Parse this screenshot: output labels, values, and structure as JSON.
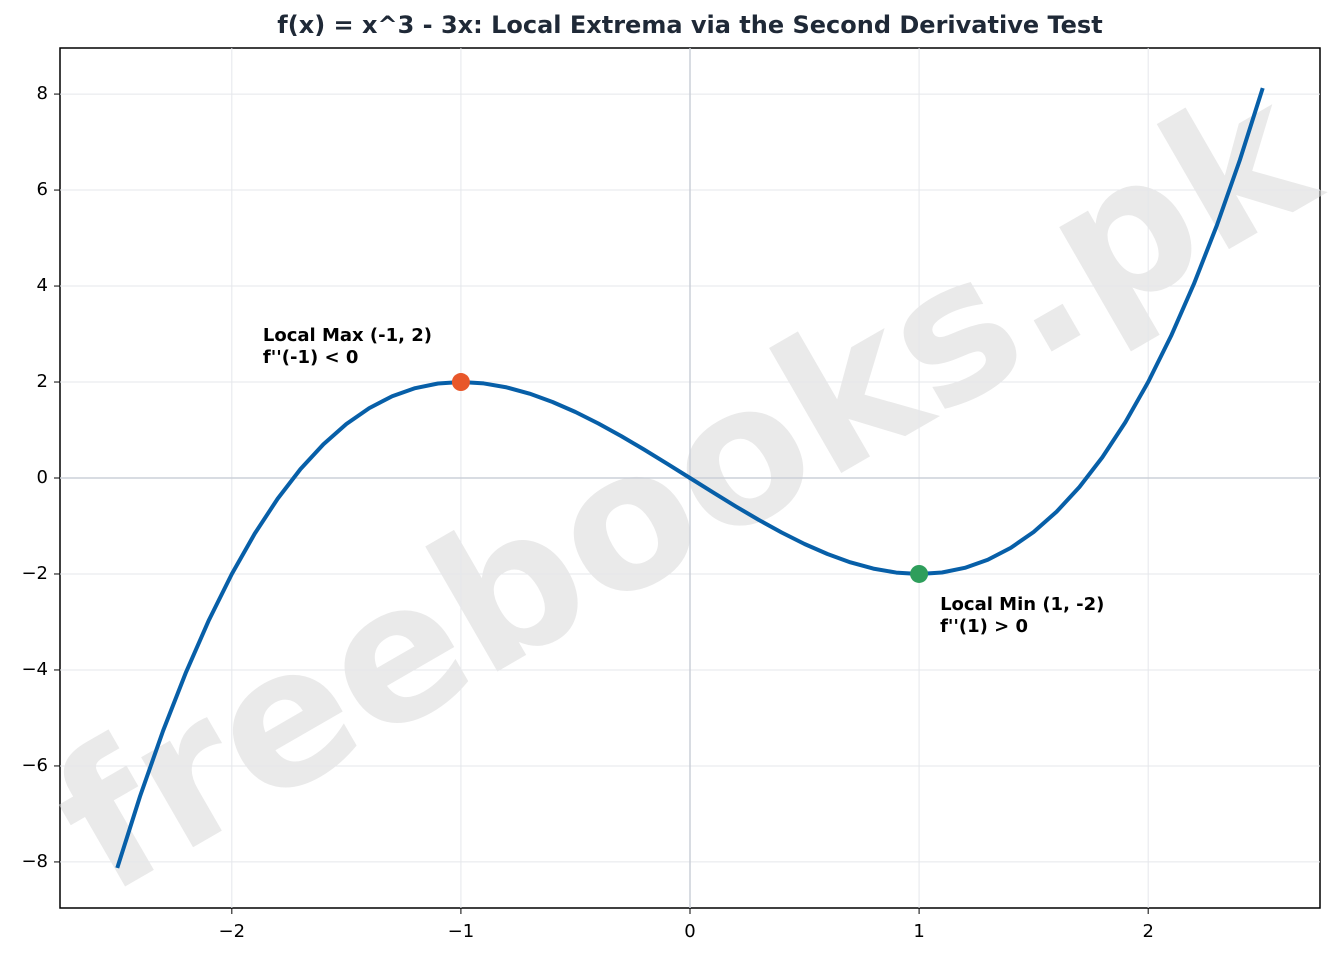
{
  "chart_data": {
    "type": "line",
    "title": "f(x) = x^3 - 3x: Local Extrema via the Second Derivative Test",
    "watermark": "freebooks.pk",
    "x": [
      -2.5,
      -2.4,
      -2.3,
      -2.2,
      -2.1,
      -2.0,
      -1.9,
      -1.8,
      -1.7,
      -1.6,
      -1.5,
      -1.4,
      -1.3,
      -1.2,
      -1.1,
      -1.0,
      -0.9,
      -0.8,
      -0.7,
      -0.6,
      -0.5,
      -0.4,
      -0.3,
      -0.2,
      -0.1,
      0,
      0.1,
      0.2,
      0.3,
      0.4,
      0.5,
      0.6,
      0.7,
      0.8,
      0.9,
      1.0,
      1.1,
      1.2,
      1.3,
      1.4,
      1.5,
      1.6,
      1.7,
      1.8,
      1.9,
      2.0,
      2.1,
      2.2,
      2.3,
      2.4,
      2.5
    ],
    "series": [
      {
        "color": "#075fa8",
        "values": [
          -8.125,
          -6.624,
          -5.267,
          -4.048,
          -2.961,
          -2,
          -1.159,
          -0.432,
          0.187,
          0.704,
          1.125,
          1.456,
          1.703,
          1.872,
          1.969,
          2,
          1.971,
          1.888,
          1.757,
          1.584,
          1.375,
          1.136,
          0.873,
          0.592,
          0.299,
          0,
          -0.299,
          -0.592,
          -0.873,
          -1.136,
          -1.375,
          -1.584,
          -1.757,
          -1.888,
          -1.971,
          -2,
          -1.969,
          -1.872,
          -1.703,
          -1.456,
          -1.125,
          -0.704,
          -0.187,
          0.432,
          1.159,
          2,
          2.961,
          4.048,
          5.267,
          6.624,
          8.125
        ]
      }
    ],
    "points": [
      {
        "label": "Local Max (-1, 2)",
        "note": "f''(-1) < 0",
        "x": -1,
        "y": 2,
        "color": "#e8572a",
        "anchor": "above-left"
      },
      {
        "label": "Local Min (1, -2)",
        "note": "f''(1) > 0",
        "x": 1,
        "y": -2,
        "color": "#2e9e5b",
        "anchor": "below-right"
      }
    ],
    "xlim": [
      -2.75,
      2.75
    ],
    "ylim": [
      -8.96,
      8.96
    ],
    "xticks": [
      {
        "value": -2,
        "label": "−2"
      },
      {
        "value": -1,
        "label": "−1"
      },
      0,
      1,
      2
    ],
    "yticks": [
      {
        "value": -8,
        "label": "−8"
      },
      {
        "value": -6,
        "label": "−6"
      },
      {
        "value": -4,
        "label": "−4"
      },
      {
        "value": -2,
        "label": "−2"
      },
      0,
      2,
      4,
      6,
      8
    ],
    "grid": true,
    "zero_lines": true
  }
}
